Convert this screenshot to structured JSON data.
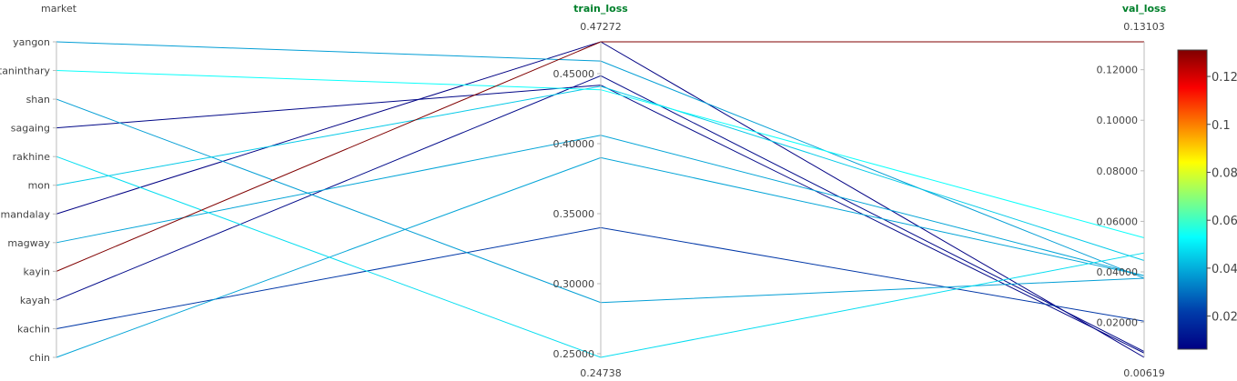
{
  "chart_data": {
    "type": "parallel_coordinates",
    "colorscale": "Jet",
    "color_range": [
      0.00619,
      0.13103
    ],
    "colorbar": {
      "ticks": [
        0.02,
        0.04,
        0.06,
        0.08,
        0.1,
        0.12
      ],
      "tick_labels": [
        "0.02",
        "0.04",
        "0.06",
        "0.08",
        "0.1",
        "0.12"
      ]
    },
    "dimensions": [
      {
        "label": "market",
        "type": "categorical",
        "title_color": "#444444",
        "categories": [
          "yangon",
          "taninthary",
          "shan",
          "sagaing",
          "rakhine",
          "mon",
          "mandalay",
          "magway",
          "kayin",
          "kayah",
          "kachin",
          "chin"
        ]
      },
      {
        "label": "train_loss",
        "type": "numeric",
        "title_color": "#00802b",
        "range": [
          0.24738,
          0.47272
        ],
        "range_labels": {
          "min": "0.24738",
          "max": "0.47272"
        },
        "ticks": [
          0.25,
          0.3,
          0.35,
          0.4,
          0.45
        ],
        "tick_labels": [
          "0.25000",
          "0.30000",
          "0.35000",
          "0.40000",
          "0.45000"
        ]
      },
      {
        "label": "val_loss",
        "type": "numeric",
        "title_color": "#00802b",
        "range": [
          0.00619,
          0.13103
        ],
        "range_labels": {
          "min": "0.00619",
          "max": "0.13103"
        },
        "ticks": [
          0.02,
          0.04,
          0.06,
          0.08,
          0.1,
          0.12
        ],
        "tick_labels": [
          "0.02000",
          "0.04000",
          "0.06000",
          "0.08000",
          "0.10000",
          "0.12000"
        ]
      }
    ],
    "records": [
      {
        "market": "yangon",
        "train_loss": 0.459,
        "val_loss": 0.0375
      },
      {
        "market": "taninthary",
        "train_loss": 0.4385,
        "val_loss": 0.0535
      },
      {
        "market": "shan",
        "train_loss": 0.2865,
        "val_loss": 0.0375
      },
      {
        "market": "sagaing",
        "train_loss": 0.4418,
        "val_loss": 0.0079
      },
      {
        "market": "rakhine",
        "train_loss": 0.24738,
        "val_loss": 0.0475
      },
      {
        "market": "mon",
        "train_loss": 0.441,
        "val_loss": 0.0445
      },
      {
        "market": "mandalay",
        "train_loss": 0.47272,
        "val_loss": 0.00619
      },
      {
        "market": "magway",
        "train_loss": 0.406,
        "val_loss": 0.0385
      },
      {
        "market": "kayin",
        "train_loss": 0.47272,
        "val_loss": 0.13103
      },
      {
        "market": "kayah",
        "train_loss": 0.4485,
        "val_loss": 0.0085
      },
      {
        "market": "kachin",
        "train_loss": 0.34,
        "val_loss": 0.0205
      },
      {
        "market": "chin",
        "train_loss": 0.39,
        "val_loss": 0.0385
      }
    ]
  }
}
